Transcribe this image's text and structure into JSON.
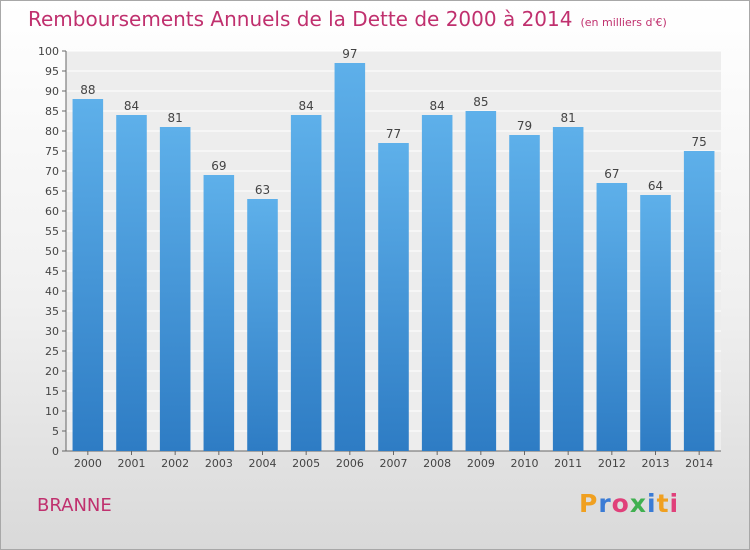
{
  "header": {
    "title": "Remboursements Annuels de la Dette de 2000 à 2014",
    "unit": "(en milliers d'€)"
  },
  "footer": {
    "place": "BRANNE",
    "logo": "Proxiti",
    "logo_colors": [
      "#f0a020",
      "#3a7bd5",
      "#e0407a",
      "#40b050",
      "#3a7bd5",
      "#f0a020",
      "#e0407a"
    ]
  },
  "colors": {
    "bar_top": "#5eb0ea",
    "bar_bottom": "#2e7cc4",
    "title": "#c0306e",
    "plot_bg": "#ededed"
  },
  "chart_data": {
    "type": "bar",
    "title": "Remboursements Annuels de la Dette de 2000 à 2014",
    "unit": "(en milliers d'€)",
    "categories": [
      "2000",
      "2001",
      "2002",
      "2003",
      "2004",
      "2005",
      "2006",
      "2007",
      "2008",
      "2009",
      "2010",
      "2011",
      "2012",
      "2013",
      "2014"
    ],
    "values": [
      88,
      84,
      81,
      69,
      63,
      84,
      97,
      77,
      84,
      85,
      79,
      81,
      67,
      64,
      75
    ],
    "ylim": [
      0,
      100
    ],
    "ytick_step": 5,
    "grid": true,
    "data_labels": true
  }
}
